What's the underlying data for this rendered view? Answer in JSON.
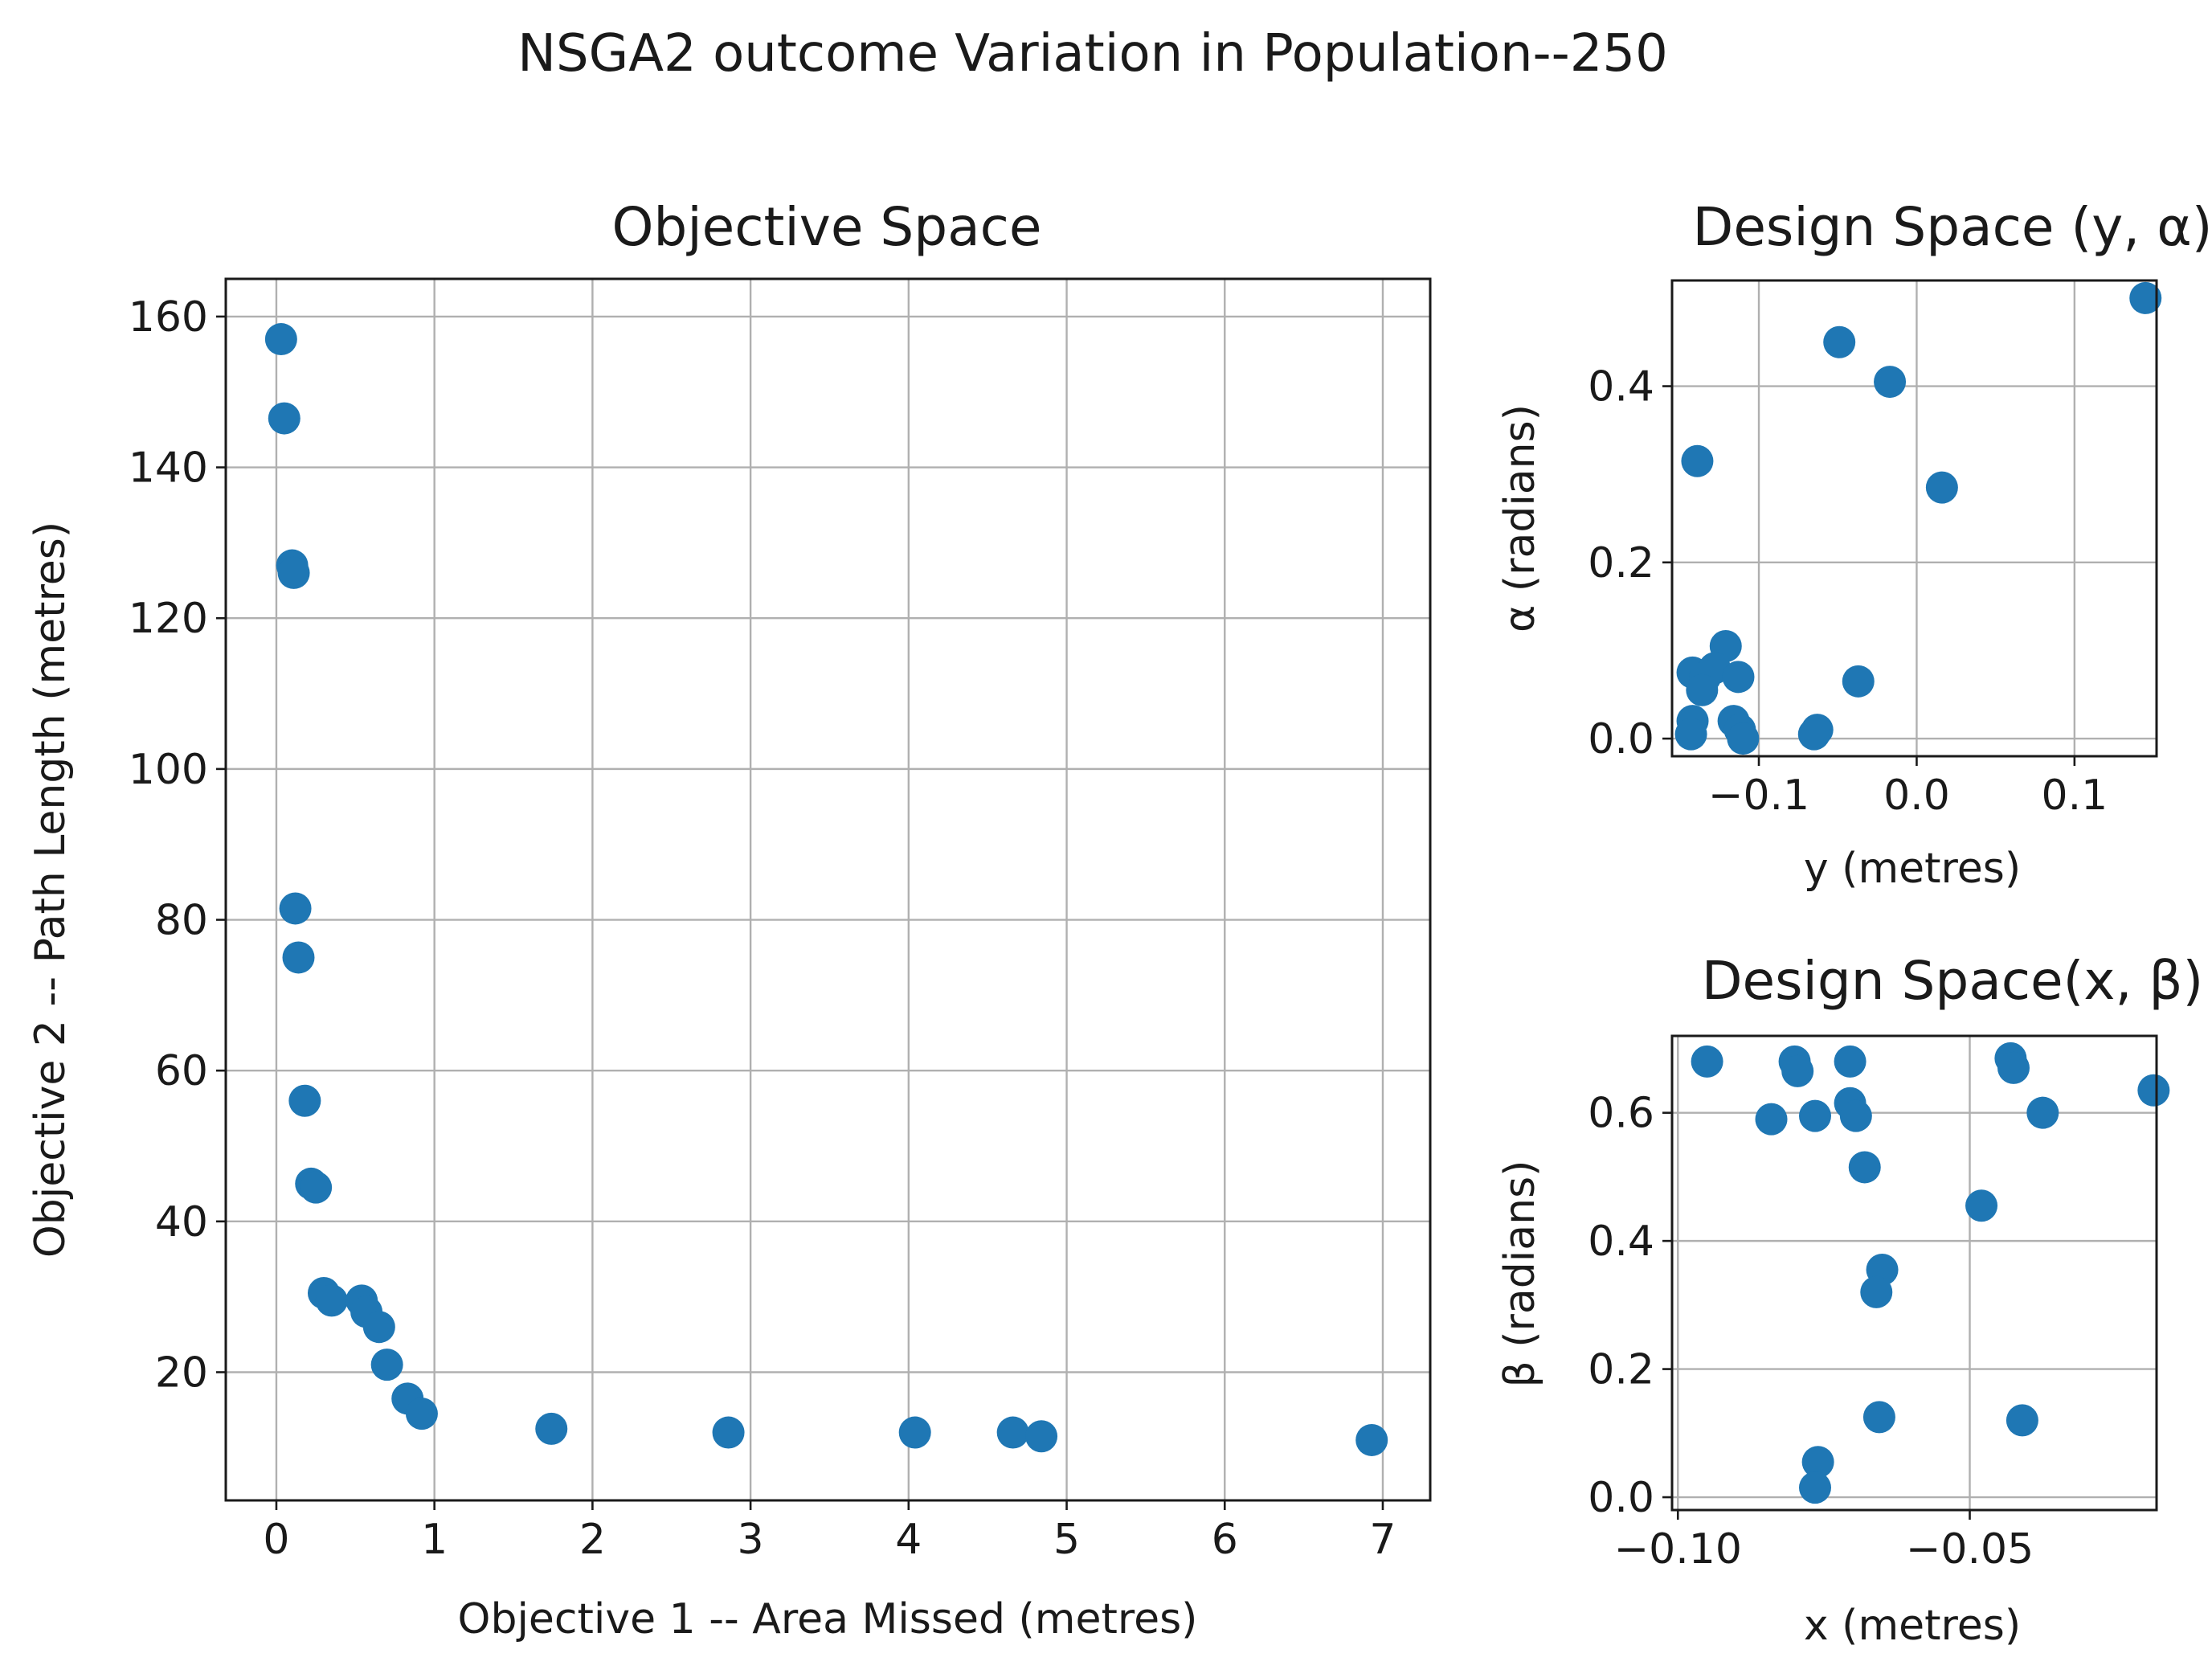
{
  "figure": {
    "suptitle": "NSGA2 outcome Variation in Population--250",
    "marker_color": "#1f77b4",
    "grid_color": "#b0b0b0"
  },
  "chart_data": [
    {
      "id": "objective",
      "type": "scatter",
      "title": "Objective Space",
      "xlabel": "Objective 1 -- Area Missed (metres)",
      "ylabel": "Objective 2 -- Path Length (metres)",
      "xlim": [
        -0.32,
        7.3
      ],
      "ylim": [
        3,
        165
      ],
      "xticks": [
        0,
        1,
        2,
        3,
        4,
        5,
        6,
        7
      ],
      "xtick_labels": [
        "0",
        "1",
        "2",
        "3",
        "4",
        "5",
        "6",
        "7"
      ],
      "yticks": [
        20,
        40,
        60,
        80,
        100,
        120,
        140,
        160
      ],
      "ytick_labels": [
        "20",
        "40",
        "60",
        "80",
        "100",
        "120",
        "140",
        "160"
      ],
      "grid": true,
      "x": [
        0.03,
        0.05,
        0.1,
        0.11,
        0.12,
        0.14,
        0.18,
        0.22,
        0.25,
        0.3,
        0.35,
        0.54,
        0.57,
        0.65,
        0.7,
        0.83,
        0.92,
        1.74,
        2.86,
        4.04,
        4.66,
        4.84,
        6.93
      ],
      "y": [
        157,
        146.5,
        127,
        126,
        81.5,
        75,
        56,
        45,
        44.5,
        30.5,
        29.5,
        29.5,
        28,
        26,
        21,
        16.5,
        14.5,
        12.5,
        12,
        12,
        12,
        11.5,
        11
      ]
    },
    {
      "id": "design_y_alpha",
      "type": "scatter",
      "title": "Design Space (y, α)",
      "xlabel": "y (metres)",
      "ylabel": "α (radians)",
      "xlim": [
        -0.155,
        0.152
      ],
      "ylim": [
        -0.02,
        0.52
      ],
      "xticks": [
        -0.1,
        0.0,
        0.1
      ],
      "xtick_labels": [
        "−0.1",
        "0.0",
        "0.1"
      ],
      "yticks": [
        0.0,
        0.2,
        0.4
      ],
      "ytick_labels": [
        "0.0",
        "0.2",
        "0.4"
      ],
      "grid": true,
      "x": [
        0.145,
        -0.049,
        -0.017,
        -0.139,
        0.016,
        -0.121,
        -0.142,
        -0.134,
        -0.128,
        -0.113,
        -0.136,
        -0.037,
        -0.142,
        -0.143,
        -0.116,
        -0.112,
        -0.063,
        -0.065,
        -0.11
      ],
      "y": [
        0.5,
        0.45,
        0.405,
        0.315,
        0.285,
        0.105,
        0.075,
        0.07,
        0.08,
        0.07,
        0.055,
        0.065,
        0.02,
        0.005,
        0.02,
        0.01,
        0.01,
        0.005,
        0.0
      ]
    },
    {
      "id": "design_x_beta",
      "type": "scatter",
      "title": "Design Space(x, β)",
      "xlabel": "x (metres)",
      "ylabel": "β (radians)",
      "xlim": [
        -0.101,
        -0.018
      ],
      "ylim": [
        -0.02,
        0.72
      ],
      "xticks": [
        -0.1,
        -0.05
      ],
      "xtick_labels": [
        "−0.10",
        "−0.05"
      ],
      "yticks": [
        0.0,
        0.2,
        0.4,
        0.6
      ],
      "ytick_labels": [
        "0.0",
        "0.2",
        "0.4",
        "0.6"
      ],
      "grid": true,
      "x": [
        -0.095,
        -0.08,
        -0.0795,
        -0.0705,
        -0.043,
        -0.0425,
        -0.0185,
        -0.0705,
        -0.0695,
        -0.084,
        -0.0765,
        -0.0375,
        -0.068,
        -0.048,
        -0.065,
        -0.066,
        -0.0655,
        -0.041,
        -0.076,
        -0.0765
      ],
      "y": [
        0.68,
        0.68,
        0.665,
        0.68,
        0.685,
        0.67,
        0.635,
        0.615,
        0.595,
        0.59,
        0.595,
        0.6,
        0.515,
        0.455,
        0.355,
        0.32,
        0.125,
        0.12,
        0.055,
        0.015
      ]
    }
  ]
}
